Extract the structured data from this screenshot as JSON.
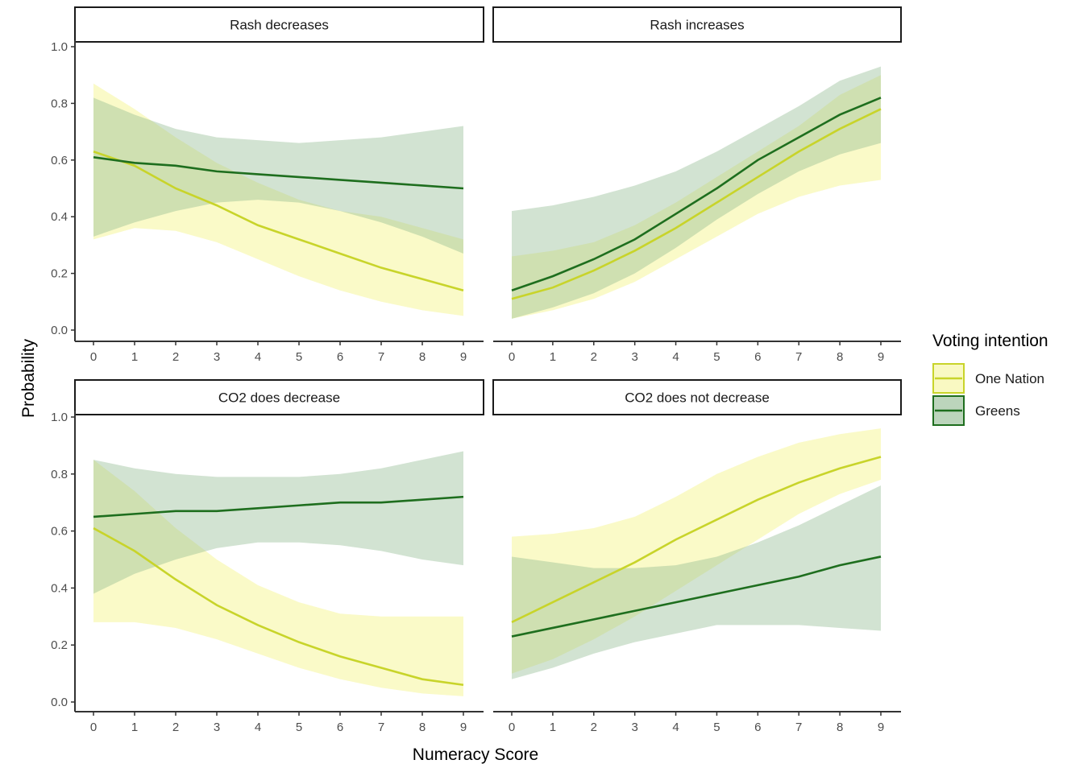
{
  "chart_data": {
    "type": "line",
    "xlabel": "Numeracy Score",
    "ylabel": "Probability",
    "x": [
      0,
      1,
      2,
      3,
      4,
      5,
      6,
      7,
      8,
      9
    ],
    "xlim": [
      0,
      9
    ],
    "ylim": [
      0,
      1
    ],
    "xticks": [
      "0",
      "1",
      "2",
      "3",
      "4",
      "5",
      "6",
      "7",
      "8",
      "9"
    ],
    "yticks": [
      "0.0",
      "0.2",
      "0.4",
      "0.6",
      "0.8",
      "1.0"
    ],
    "grid": false,
    "legend": {
      "title": "Voting intention",
      "placement": "right",
      "entries": [
        "One Nation",
        "Greens"
      ]
    },
    "colors": {
      "One Nation": "#c8d42a",
      "One Nation band": "#f5f59a",
      "Greens": "#1e6e1e",
      "Greens band": "#8fb98f"
    },
    "panels": [
      {
        "title": "Rash decreases",
        "series": [
          {
            "name": "One Nation",
            "values": [
              0.63,
              0.58,
              0.5,
              0.44,
              0.37,
              0.32,
              0.27,
              0.22,
              0.18,
              0.14
            ],
            "lower": [
              0.32,
              0.36,
              0.35,
              0.31,
              0.25,
              0.19,
              0.14,
              0.1,
              0.07,
              0.05
            ],
            "upper": [
              0.87,
              0.78,
              0.68,
              0.59,
              0.52,
              0.46,
              0.42,
              0.4,
              0.36,
              0.32
            ]
          },
          {
            "name": "Greens",
            "values": [
              0.61,
              0.59,
              0.58,
              0.56,
              0.55,
              0.54,
              0.53,
              0.52,
              0.51,
              0.5
            ],
            "lower": [
              0.33,
              0.38,
              0.42,
              0.45,
              0.46,
              0.45,
              0.42,
              0.38,
              0.33,
              0.27
            ],
            "upper": [
              0.82,
              0.76,
              0.71,
              0.68,
              0.67,
              0.66,
              0.67,
              0.68,
              0.7,
              0.72
            ]
          }
        ]
      },
      {
        "title": "Rash increases",
        "series": [
          {
            "name": "One Nation",
            "values": [
              0.11,
              0.15,
              0.21,
              0.28,
              0.36,
              0.45,
              0.54,
              0.63,
              0.71,
              0.78
            ],
            "lower": [
              0.04,
              0.07,
              0.11,
              0.17,
              0.25,
              0.33,
              0.41,
              0.47,
              0.51,
              0.53
            ],
            "upper": [
              0.26,
              0.28,
              0.31,
              0.37,
              0.45,
              0.54,
              0.63,
              0.72,
              0.83,
              0.9
            ]
          },
          {
            "name": "Greens",
            "values": [
              0.14,
              0.19,
              0.25,
              0.32,
              0.41,
              0.5,
              0.6,
              0.68,
              0.76,
              0.82
            ],
            "lower": [
              0.04,
              0.08,
              0.13,
              0.2,
              0.29,
              0.39,
              0.48,
              0.56,
              0.62,
              0.66
            ],
            "upper": [
              0.42,
              0.44,
              0.47,
              0.51,
              0.56,
              0.63,
              0.71,
              0.79,
              0.88,
              0.93
            ]
          }
        ]
      },
      {
        "title": "CO2 does decrease",
        "series": [
          {
            "name": "One Nation",
            "values": [
              0.61,
              0.53,
              0.43,
              0.34,
              0.27,
              0.21,
              0.16,
              0.12,
              0.08,
              0.06
            ],
            "lower": [
              0.28,
              0.28,
              0.26,
              0.22,
              0.17,
              0.12,
              0.08,
              0.05,
              0.03,
              0.02
            ],
            "upper": [
              0.85,
              0.74,
              0.61,
              0.5,
              0.41,
              0.35,
              0.31,
              0.3,
              0.3,
              0.3
            ]
          },
          {
            "name": "Greens",
            "values": [
              0.65,
              0.66,
              0.67,
              0.67,
              0.68,
              0.69,
              0.7,
              0.7,
              0.71,
              0.72
            ],
            "lower": [
              0.38,
              0.45,
              0.5,
              0.54,
              0.56,
              0.56,
              0.55,
              0.53,
              0.5,
              0.48
            ],
            "upper": [
              0.85,
              0.82,
              0.8,
              0.79,
              0.79,
              0.79,
              0.8,
              0.82,
              0.85,
              0.88
            ]
          }
        ]
      },
      {
        "title": "CO2 does not decrease",
        "series": [
          {
            "name": "One Nation",
            "values": [
              0.28,
              0.35,
              0.42,
              0.49,
              0.57,
              0.64,
              0.71,
              0.77,
              0.82,
              0.86
            ],
            "lower": [
              0.1,
              0.15,
              0.22,
              0.3,
              0.39,
              0.48,
              0.57,
              0.66,
              0.73,
              0.78
            ],
            "upper": [
              0.58,
              0.59,
              0.61,
              0.65,
              0.72,
              0.8,
              0.86,
              0.91,
              0.94,
              0.96
            ]
          },
          {
            "name": "Greens",
            "values": [
              0.23,
              0.26,
              0.29,
              0.32,
              0.35,
              0.38,
              0.41,
              0.44,
              0.48,
              0.51
            ],
            "lower": [
              0.08,
              0.12,
              0.17,
              0.21,
              0.24,
              0.27,
              0.27,
              0.27,
              0.26,
              0.25
            ],
            "upper": [
              0.51,
              0.49,
              0.47,
              0.47,
              0.48,
              0.51,
              0.56,
              0.62,
              0.69,
              0.76
            ]
          }
        ]
      }
    ]
  }
}
